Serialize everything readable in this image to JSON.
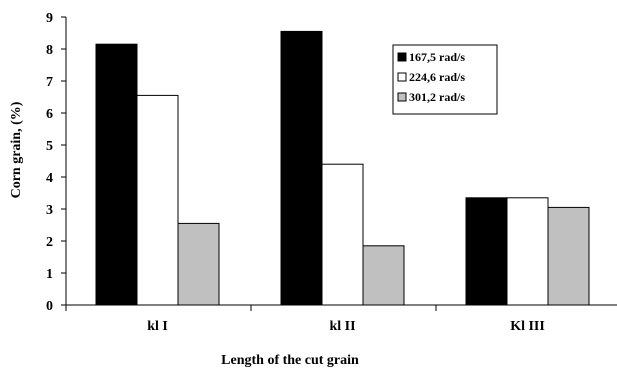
{
  "chart_data": {
    "type": "bar",
    "title": "",
    "xlabel": "Length of the cut grain",
    "ylabel": "Corn grain, (%)",
    "categories": [
      "kl I",
      "kl II",
      "Kl III"
    ],
    "ylim": [
      0,
      9
    ],
    "yticks": [
      "0",
      "1",
      "2",
      "3",
      "4",
      "5",
      "6",
      "7",
      "8",
      "9"
    ],
    "grid": false,
    "legend_position": "top-right",
    "series": [
      {
        "name": "167,5 rad/s",
        "values": [
          8.15,
          8.55,
          3.35
        ],
        "color": "#000000"
      },
      {
        "name": "224,6 rad/s",
        "values": [
          6.55,
          4.4,
          3.35
        ],
        "color": "#ffffff"
      },
      {
        "name": "301,2 rad/s",
        "values": [
          2.55,
          1.85,
          3.05
        ],
        "color": "#c0c0c0"
      }
    ]
  }
}
